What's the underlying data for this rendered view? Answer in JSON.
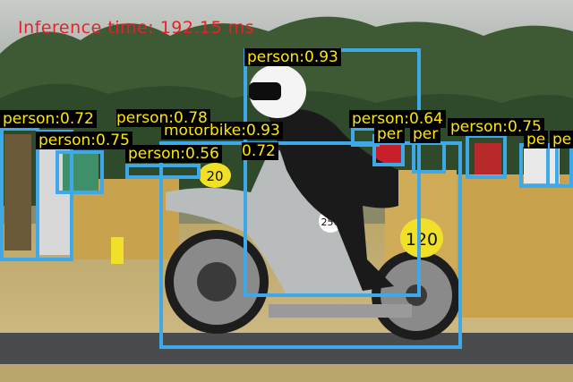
{
  "overlay": {
    "inference_text": "Inference time: 192.15 ms",
    "box_color": "#3ea8e8",
    "label_bg": "#000000",
    "label_color": "#ffe800",
    "inference_color": "#e8202a"
  },
  "detections": [
    {
      "label": "person:0.93"
    },
    {
      "label": "motorbike:0.93"
    },
    {
      "label": "person:0.72"
    },
    {
      "label": "person:0.78"
    },
    {
      "label": "person:0.75"
    },
    {
      "label": "person:0.56"
    },
    {
      "label": "0.72"
    },
    {
      "label": "person:0.64"
    },
    {
      "label": "per"
    },
    {
      "label": "per"
    },
    {
      "label": "person:0.75"
    },
    {
      "label": "pe"
    },
    {
      "label": "pe"
    }
  ],
  "image": {
    "sign_1": "250",
    "sign_2": "120",
    "sign_3": "20"
  }
}
